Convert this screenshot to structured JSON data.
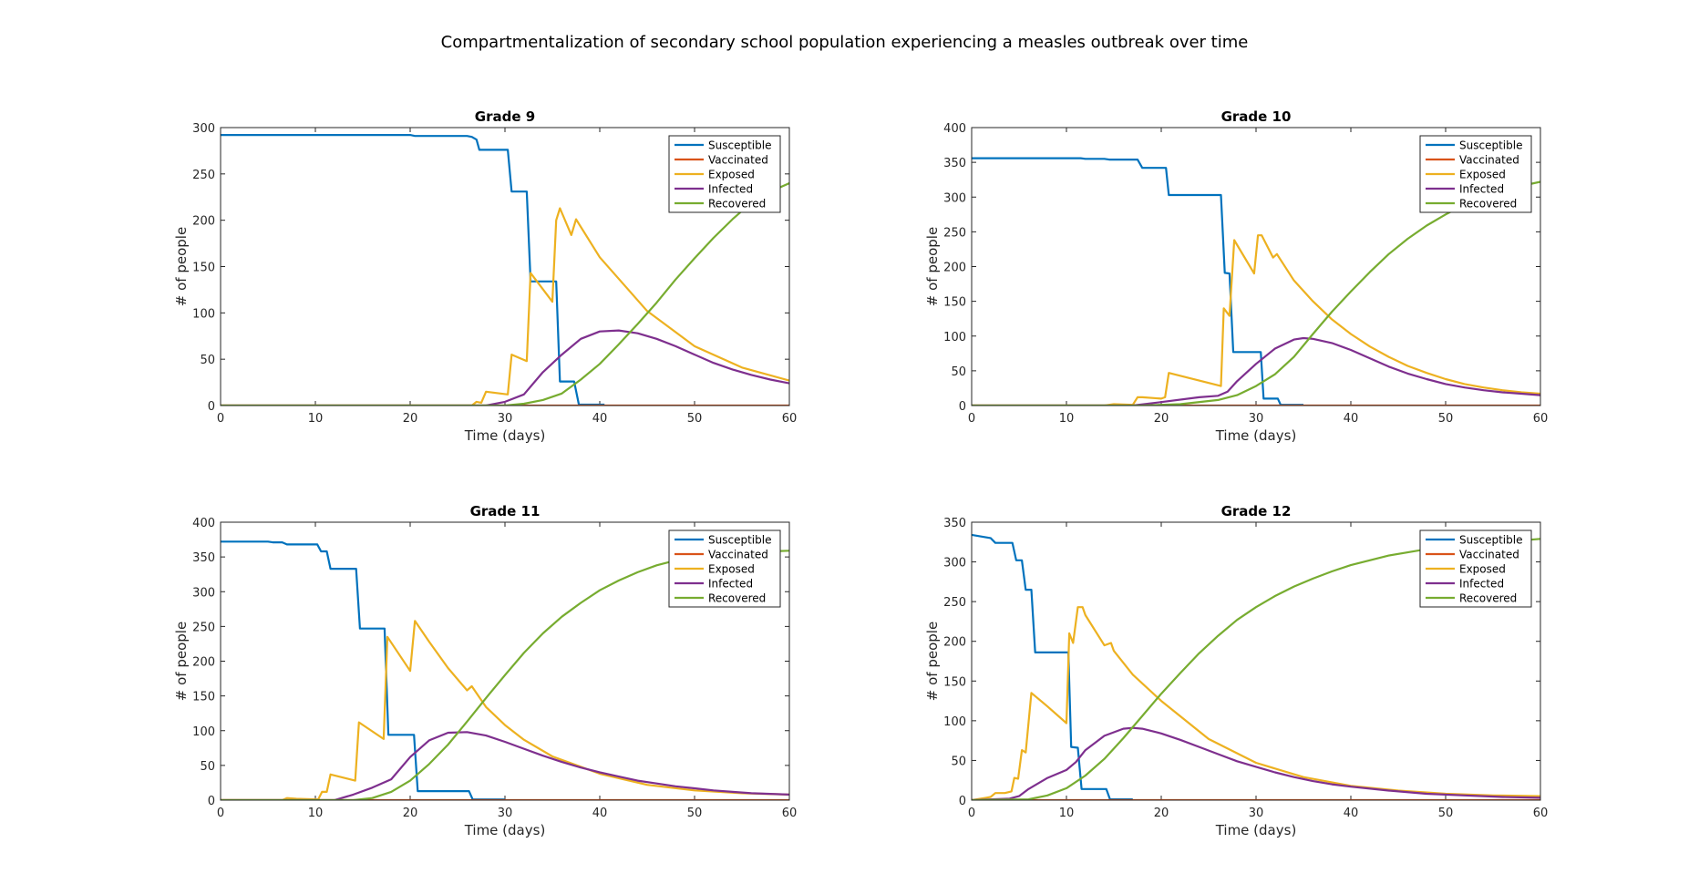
{
  "figure": {
    "title": "Compartmentalization of secondary school population experiencing a measles outbreak over time"
  },
  "colors": {
    "Susceptible": "#0072BD",
    "Vaccinated": "#D95319",
    "Exposed": "#EDB120",
    "Infected": "#7E2F8E",
    "Recovered": "#77AC30"
  },
  "chart_data": [
    {
      "type": "line",
      "title": "Grade 9",
      "xlabel": "Time (days)",
      "ylabel": "# of people",
      "xlim": [
        0,
        60
      ],
      "ylim": [
        0,
        300
      ],
      "xticks": [
        0,
        10,
        20,
        30,
        40,
        50,
        60
      ],
      "yticks": [
        0,
        50,
        100,
        150,
        200,
        250,
        300
      ],
      "legend": "top-right",
      "series": [
        {
          "name": "Susceptible",
          "x": [
            0,
            20,
            20.5,
            26,
            26.5,
            27,
            27.3,
            30.3,
            30.7,
            32.3,
            32.7,
            35.4,
            35.8,
            37.3,
            37.8,
            40.5
          ],
          "y": [
            292,
            292,
            291,
            291,
            290,
            287,
            276,
            276,
            231,
            231,
            134,
            134,
            26,
            26,
            1,
            1
          ]
        },
        {
          "name": "Vaccinated",
          "x": [
            0,
            60
          ],
          "y": [
            0,
            0
          ]
        },
        {
          "name": "Exposed",
          "x": [
            0,
            26.5,
            27,
            27.5,
            28,
            30.3,
            30.7,
            32.3,
            32.7,
            35,
            35.4,
            35.8,
            37,
            37.5,
            40,
            45,
            50,
            55,
            60
          ],
          "y": [
            0,
            0,
            4,
            3,
            15,
            12,
            55,
            48,
            143,
            112,
            200,
            213,
            184,
            201,
            160,
            102,
            64,
            41,
            27
          ]
        },
        {
          "name": "Infected",
          "x": [
            0,
            28,
            30,
            32,
            34,
            36,
            38,
            40,
            42,
            44,
            46,
            48,
            50,
            52,
            54,
            56,
            58,
            60
          ],
          "y": [
            0,
            0,
            4,
            12,
            36,
            55,
            72,
            80,
            81,
            78,
            72,
            64,
            55,
            46,
            39,
            33,
            28,
            24
          ]
        },
        {
          "name": "Recovered",
          "x": [
            0,
            30,
            32,
            34,
            36,
            38,
            40,
            42,
            44,
            46,
            48,
            50,
            52,
            54,
            56,
            58,
            60
          ],
          "y": [
            0,
            0,
            2,
            6,
            13,
            28,
            45,
            66,
            88,
            111,
            136,
            159,
            181,
            201,
            219,
            231,
            240
          ]
        }
      ]
    },
    {
      "type": "line",
      "title": "Grade 10",
      "xlabel": "Time (days)",
      "ylabel": "# of people",
      "xlim": [
        0,
        60
      ],
      "ylim": [
        0,
        400
      ],
      "xticks": [
        0,
        10,
        20,
        30,
        40,
        50,
        60
      ],
      "yticks": [
        0,
        50,
        100,
        150,
        200,
        250,
        300,
        350,
        400
      ],
      "legend": "top-right",
      "series": [
        {
          "name": "Susceptible",
          "x": [
            0,
            11.5,
            12,
            14,
            14.5,
            17.5,
            18,
            20.5,
            20.8,
            26.3,
            26.7,
            27.2,
            27.6,
            30.5,
            30.8,
            32.3,
            32.6,
            35
          ],
          "y": [
            356,
            356,
            355,
            355,
            354,
            354,
            342,
            342,
            303,
            303,
            191,
            190,
            77,
            77,
            10,
            10,
            1,
            1
          ]
        },
        {
          "name": "Vaccinated",
          "x": [
            0,
            60
          ],
          "y": [
            0,
            0
          ]
        },
        {
          "name": "Exposed",
          "x": [
            0,
            14,
            15,
            17,
            17.5,
            18,
            20,
            20.4,
            20.8,
            26.3,
            26.6,
            27.2,
            27.7,
            29.8,
            30.2,
            30.6,
            31.8,
            32.2,
            34,
            36,
            38,
            40,
            42,
            44,
            46,
            48,
            50,
            52,
            54,
            56,
            58,
            60
          ],
          "y": [
            0,
            0,
            2,
            1,
            12,
            12,
            10,
            12,
            47,
            28,
            140,
            129,
            238,
            190,
            245,
            245,
            213,
            218,
            180,
            150,
            124,
            103,
            85,
            70,
            57,
            47,
            38,
            31,
            26,
            22,
            19,
            17
          ]
        },
        {
          "name": "Infected",
          "x": [
            0,
            17,
            20,
            24,
            26,
            27,
            28,
            30,
            32,
            34,
            35,
            36,
            38,
            40,
            42,
            44,
            46,
            48,
            50,
            52,
            54,
            56,
            58,
            60
          ],
          "y": [
            0,
            0,
            5,
            12,
            14,
            20,
            35,
            60,
            82,
            95,
            97,
            96,
            90,
            80,
            68,
            56,
            46,
            38,
            31,
            26,
            22,
            19,
            17,
            15
          ]
        },
        {
          "name": "Recovered",
          "x": [
            0,
            18,
            22,
            26,
            28,
            30,
            32,
            34,
            36,
            38,
            40,
            42,
            44,
            46,
            48,
            50,
            52,
            54,
            56,
            58,
            60
          ],
          "y": [
            0,
            0,
            2,
            8,
            15,
            28,
            45,
            70,
            103,
            135,
            164,
            192,
            218,
            240,
            259,
            275,
            289,
            300,
            309,
            316,
            322
          ]
        }
      ]
    },
    {
      "type": "line",
      "title": "Grade 11",
      "xlabel": "Time (days)",
      "ylabel": "# of people",
      "xlim": [
        0,
        60
      ],
      "ylim": [
        0,
        400
      ],
      "xticks": [
        0,
        10,
        20,
        30,
        40,
        50,
        60
      ],
      "yticks": [
        0,
        50,
        100,
        150,
        200,
        250,
        300,
        350,
        400
      ],
      "legend": "top-right",
      "series": [
        {
          "name": "Susceptible",
          "x": [
            0,
            5,
            5.5,
            6.5,
            7,
            10.2,
            10.6,
            11.2,
            11.6,
            14.3,
            14.7,
            17.3,
            17.7,
            20.4,
            20.8,
            26.2,
            26.6,
            30
          ],
          "y": [
            372,
            372,
            371,
            371,
            368,
            368,
            358,
            358,
            333,
            333,
            247,
            247,
            94,
            94,
            13,
            13,
            1,
            1
          ]
        },
        {
          "name": "Vaccinated",
          "x": [
            0,
            60
          ],
          "y": [
            0,
            0
          ]
        },
        {
          "name": "Exposed",
          "x": [
            0,
            6.5,
            7,
            8,
            10.3,
            10.7,
            11.2,
            11.6,
            14.2,
            14.6,
            17.2,
            17.6,
            20,
            20.5,
            22,
            24,
            26,
            26.5,
            28,
            30,
            32,
            35,
            40,
            45,
            50,
            55,
            60
          ],
          "y": [
            0,
            0,
            3,
            2,
            1,
            12,
            12,
            37,
            28,
            112,
            88,
            235,
            186,
            258,
            228,
            190,
            158,
            164,
            134,
            108,
            87,
            63,
            38,
            22,
            14,
            10,
            8
          ]
        },
        {
          "name": "Infected",
          "x": [
            0,
            12,
            14,
            16,
            18,
            20,
            22,
            24,
            26,
            28,
            30,
            32,
            34,
            36,
            38,
            40,
            42,
            44,
            46,
            48,
            50,
            52,
            54,
            56,
            58,
            60
          ],
          "y": [
            0,
            0,
            8,
            18,
            30,
            62,
            86,
            97,
            98,
            93,
            84,
            74,
            64,
            55,
            47,
            40,
            34,
            28,
            24,
            20,
            17,
            14,
            12,
            10,
            9,
            8
          ]
        },
        {
          "name": "Recovered",
          "x": [
            0,
            14,
            16,
            18,
            20,
            22,
            24,
            26,
            28,
            30,
            32,
            34,
            36,
            38,
            40,
            42,
            44,
            46,
            48,
            50,
            52,
            54,
            56,
            58,
            60
          ],
          "y": [
            0,
            0,
            3,
            12,
            28,
            52,
            80,
            113,
            147,
            180,
            212,
            240,
            264,
            284,
            302,
            316,
            328,
            338,
            345,
            350,
            354,
            356,
            357,
            358,
            359
          ]
        }
      ]
    },
    {
      "type": "line",
      "title": "Grade 12",
      "xlabel": "Time (days)",
      "ylabel": "# of people",
      "xlim": [
        0,
        60
      ],
      "ylim": [
        0,
        350
      ],
      "xticks": [
        0,
        10,
        20,
        30,
        40,
        50,
        60
      ],
      "yticks": [
        0,
        50,
        100,
        150,
        200,
        250,
        300,
        350
      ],
      "legend": "top-right",
      "series": [
        {
          "name": "Susceptible",
          "x": [
            0,
            1,
            1.5,
            2,
            2.5,
            4.3,
            4.7,
            5.3,
            5.7,
            6.3,
            6.7,
            10.2,
            10.5,
            11.2,
            11.6,
            14.2,
            14.6,
            17
          ],
          "y": [
            334,
            332,
            331,
            330,
            324,
            324,
            302,
            302,
            265,
            265,
            186,
            186,
            67,
            66,
            14,
            14,
            1,
            1
          ]
        },
        {
          "name": "Vaccinated",
          "x": [
            0,
            60
          ],
          "y": [
            0,
            0
          ]
        },
        {
          "name": "Exposed",
          "x": [
            0,
            1.5,
            2,
            2.5,
            3.5,
            4.2,
            4.5,
            4.9,
            5.3,
            5.7,
            6.3,
            6.8,
            8,
            10,
            10.3,
            10.7,
            11.2,
            11.7,
            12,
            14,
            14.7,
            15,
            17,
            20,
            25,
            30,
            35,
            40,
            45,
            50,
            55,
            60
          ],
          "y": [
            0,
            3,
            4,
            9,
            9,
            11,
            28,
            27,
            63,
            60,
            135,
            130,
            118,
            97,
            210,
            198,
            243,
            243,
            233,
            195,
            198,
            188,
            158,
            125,
            77,
            47,
            29,
            18,
            12,
            8,
            6,
            5
          ]
        },
        {
          "name": "Infected",
          "x": [
            0,
            4,
            5,
            6,
            8,
            10,
            11,
            12,
            14,
            16,
            17,
            18,
            20,
            22,
            24,
            26,
            28,
            30,
            32,
            34,
            36,
            38,
            40,
            44,
            48,
            52,
            56,
            60
          ],
          "y": [
            0,
            2,
            5,
            14,
            28,
            38,
            48,
            63,
            81,
            90,
            91,
            90,
            84,
            76,
            67,
            58,
            49,
            42,
            35,
            29,
            24,
            20,
            17,
            12,
            8,
            6,
            4,
            3
          ]
        },
        {
          "name": "Recovered",
          "x": [
            0,
            6,
            8,
            10,
            12,
            14,
            16,
            18,
            20,
            22,
            24,
            26,
            28,
            30,
            32,
            34,
            36,
            38,
            40,
            42,
            44,
            46,
            48,
            50,
            52,
            54,
            56,
            58,
            60
          ],
          "y": [
            0,
            1,
            6,
            15,
            31,
            52,
            78,
            106,
            134,
            160,
            185,
            207,
            227,
            243,
            257,
            269,
            279,
            288,
            296,
            302,
            308,
            312,
            316,
            319,
            322,
            324,
            326,
            327,
            329
          ]
        }
      ]
    }
  ]
}
